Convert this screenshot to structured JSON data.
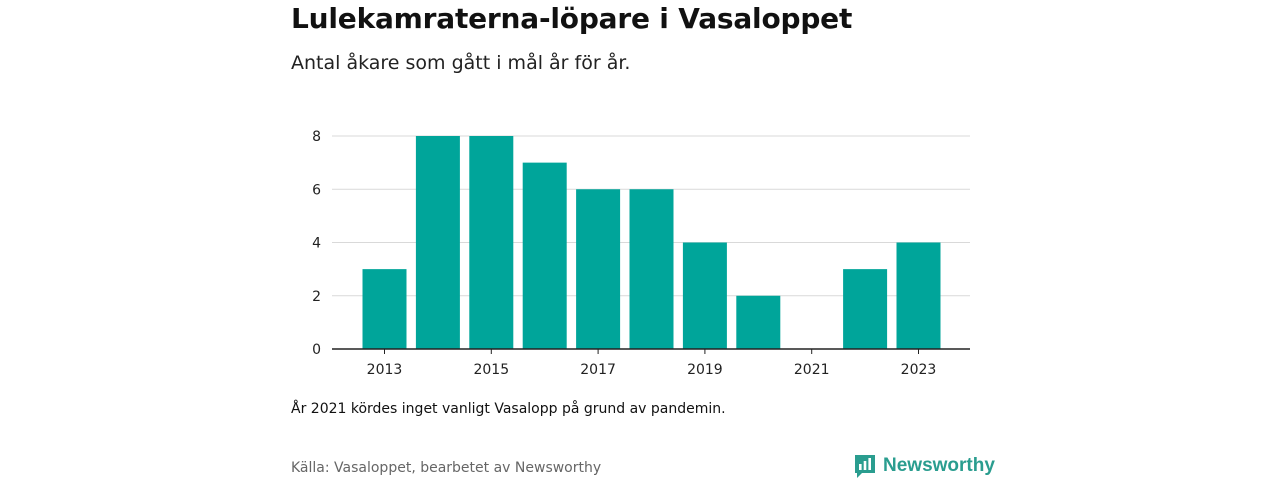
{
  "header": {
    "title": "Lulekamraterna-löpare i Vasaloppet",
    "subtitle": "Antal åkare som gått i mål år för år."
  },
  "footer": {
    "note": "År 2021 kördes inget vanligt Vasalopp på grund av pandemin.",
    "source": "Källa: Vasaloppet, bearbetet av Newsworthy",
    "brand": "Newsworthy",
    "brand_icon": "bar-chart-logo-icon"
  },
  "colors": {
    "bar": "#00a59a",
    "grid": "#d9d9d9",
    "axis": "#222222",
    "brand": "#2a9d8f"
  },
  "chart_data": {
    "type": "bar",
    "title": "Lulekamraterna-löpare i Vasaloppet",
    "subtitle": "Antal åkare som gått i mål år för år.",
    "categories": [
      "2013",
      "2014",
      "2015",
      "2016",
      "2017",
      "2018",
      "2019",
      "2020",
      "2021",
      "2022",
      "2023"
    ],
    "values": [
      3,
      8,
      8,
      7,
      6,
      6,
      4,
      2,
      0,
      3,
      4
    ],
    "x_tick_labels": [
      "2013",
      "2015",
      "2017",
      "2019",
      "2021",
      "2023"
    ],
    "y_ticks": [
      0,
      2,
      4,
      6,
      8
    ],
    "ylim": [
      0,
      8
    ],
    "xlabel": "",
    "ylabel": "",
    "grid": true,
    "legend": "none"
  }
}
